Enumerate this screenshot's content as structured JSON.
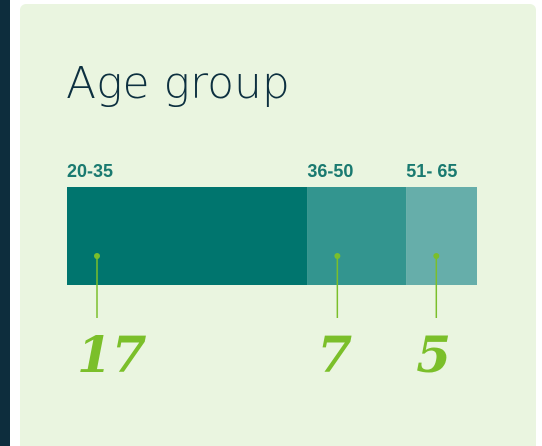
{
  "chart_data": {
    "type": "bar",
    "stacked": true,
    "title": "Age group",
    "categories": [
      "20-35",
      "36-50",
      "51- 65"
    ],
    "values": [
      17,
      7,
      5
    ],
    "colors": [
      "#00756e",
      "#33958f",
      "#66aeaa"
    ]
  }
}
